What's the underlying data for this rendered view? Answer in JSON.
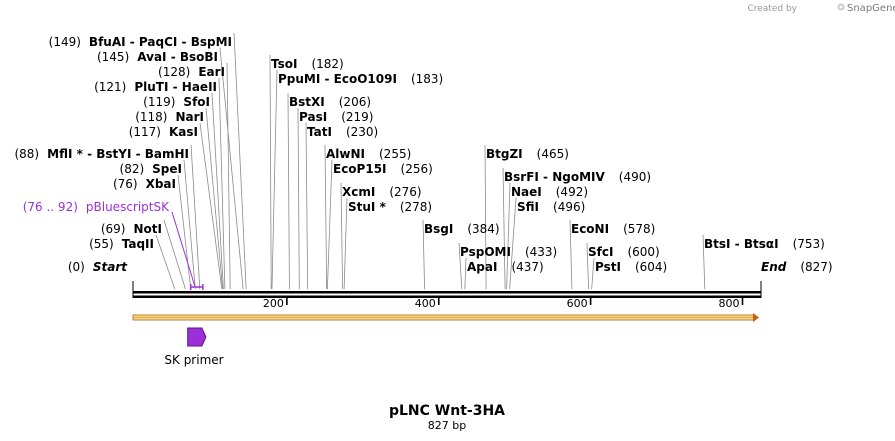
{
  "header": {
    "created_by": "Created by",
    "brand": "SnapGene"
  },
  "map": {
    "name": "pLNC Wnt-3HA",
    "length_label": "827 bp",
    "length": 827,
    "ticks": [
      {
        "value": 200,
        "label": "200"
      },
      {
        "value": 400,
        "label": "400"
      },
      {
        "value": 600,
        "label": "600"
      },
      {
        "value": 800,
        "label": "800"
      }
    ],
    "start_label": {
      "pos": "(0)",
      "name": "Start"
    },
    "end_label": {
      "name": "End",
      "pos": "(827)"
    }
  },
  "sites": [
    {
      "id": "bfuai",
      "pos": "(149)",
      "parts": [
        "BfuAI",
        "  -  PaqCI",
        "  -  BspMI"
      ],
      "bp": 149
    },
    {
      "id": "avai",
      "pos": "(145)",
      "parts": [
        "AvaI",
        "  -  BsoBI"
      ],
      "bp": 145
    },
    {
      "id": "eari",
      "pos": "(128)",
      "parts": [
        "EarI"
      ],
      "bp": 128
    },
    {
      "id": "pluti",
      "pos": "(121)",
      "parts": [
        "PluTI",
        "  -  HaeII"
      ],
      "bp": 121
    },
    {
      "id": "sfoi",
      "pos": "(119)",
      "parts": [
        "SfoI"
      ],
      "bp": 119
    },
    {
      "id": "nari",
      "pos": "(118)",
      "parts": [
        "NarI"
      ],
      "bp": 118
    },
    {
      "id": "kasi",
      "pos": "(117)",
      "parts": [
        "KasI"
      ],
      "bp": 117
    },
    {
      "id": "mfli",
      "pos": "(88)",
      "parts": [
        "MflI *",
        "  -  BstYI",
        "  -  BamHI"
      ],
      "bp": 88
    },
    {
      "id": "spei",
      "pos": "(82)",
      "parts": [
        "SpeI"
      ],
      "bp": 82
    },
    {
      "id": "xbai",
      "pos": "(76)",
      "parts": [
        "XbaI"
      ],
      "bp": 76
    },
    {
      "id": "noti",
      "pos": "(69)",
      "parts": [
        "NotI"
      ],
      "bp": 69
    },
    {
      "id": "taqii",
      "pos": "(55)",
      "parts": [
        "TaqII"
      ],
      "bp": 55
    },
    {
      "id": "tsoi",
      "pos": "(182)",
      "parts": [
        "TsoI"
      ],
      "bp": 182
    },
    {
      "id": "ppumi",
      "pos": "(183)",
      "parts": [
        "PpuMI",
        "  -  EcoO109I"
      ],
      "bp": 183
    },
    {
      "id": "bstxi",
      "pos": "(206)",
      "parts": [
        "BstXI"
      ],
      "bp": 206
    },
    {
      "id": "pasi",
      "pos": "(219)",
      "parts": [
        "PasI"
      ],
      "bp": 219
    },
    {
      "id": "tati",
      "pos": "(230)",
      "parts": [
        "TatI"
      ],
      "bp": 230
    },
    {
      "id": "alwni",
      "pos": "(255)",
      "parts": [
        "AlwNI"
      ],
      "bp": 255
    },
    {
      "id": "ecop15i",
      "pos": "(256)",
      "parts": [
        "EcoP15I"
      ],
      "bp": 256
    },
    {
      "id": "xcmi",
      "pos": "(276)",
      "parts": [
        "XcmI"
      ],
      "bp": 276
    },
    {
      "id": "stui",
      "pos": "(278)",
      "parts": [
        "StuI *"
      ],
      "bp": 278
    },
    {
      "id": "bsgi",
      "pos": "(384)",
      "parts": [
        "BsgI"
      ],
      "bp": 384
    },
    {
      "id": "btgzi",
      "pos": "(465)",
      "parts": [
        "BtgZI"
      ],
      "bp": 465
    },
    {
      "id": "pspomi",
      "pos": "(433)",
      "parts": [
        "PspOMI"
      ],
      "bp": 433
    },
    {
      "id": "apai",
      "pos": "(437)",
      "parts": [
        "ApaI"
      ],
      "bp": 437
    },
    {
      "id": "bsrfi",
      "pos": "(490)",
      "parts": [
        "BsrFI",
        "  -  NgoMIV"
      ],
      "bp": 490
    },
    {
      "id": "naei",
      "pos": "(492)",
      "parts": [
        "NaeI"
      ],
      "bp": 492
    },
    {
      "id": "sfii",
      "pos": "(496)",
      "parts": [
        "SfiI"
      ],
      "bp": 496
    },
    {
      "id": "econi",
      "pos": "(578)",
      "parts": [
        "EcoNI"
      ],
      "bp": 578
    },
    {
      "id": "sfci",
      "pos": "(600)",
      "parts": [
        "SfcI"
      ],
      "bp": 600
    },
    {
      "id": "psti",
      "pos": "(604)",
      "parts": [
        "PstI"
      ],
      "bp": 604
    },
    {
      "id": "btsi",
      "pos": "(753)",
      "parts": [
        "BtsI",
        "  -  BtsαI"
      ],
      "bp": 753
    }
  ],
  "features": [
    {
      "id": "pbluescriptsk",
      "pos": "(76 .. 92)",
      "name": "pBluescriptSK",
      "start": 76,
      "end": 92,
      "color": "#9b30d9"
    },
    {
      "id": "sk-primer",
      "name": "SK primer",
      "start": 76,
      "end": 92,
      "color": "#9b30d9",
      "direction": "forward"
    },
    {
      "id": "orange-feature",
      "start": 1,
      "end": 827,
      "color": "#f5a623",
      "direction": "forward"
    }
  ]
}
